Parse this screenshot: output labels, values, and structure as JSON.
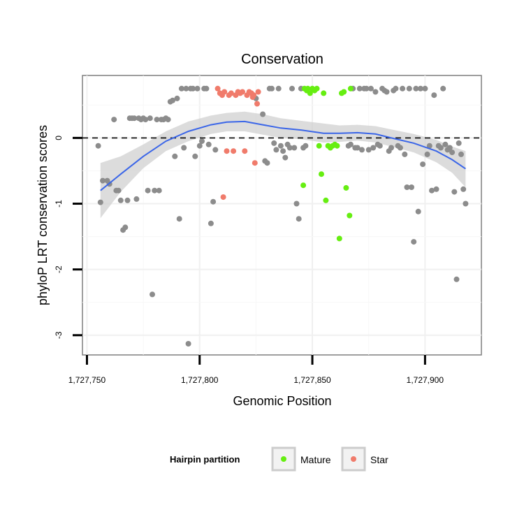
{
  "chart_data": {
    "type": "scatter",
    "title": "Conservation",
    "xlabel": "Genomic Position",
    "ylabel": "phyloP LRT conservation scores",
    "xlim": [
      1727748,
      1727925
    ],
    "ylim": [
      -3.3,
      0.95
    ],
    "x_ticks": [
      1727750,
      1727800,
      1727850,
      1727900
    ],
    "x_tick_labels": [
      "1,727,750",
      "1,727,800",
      "1,727,850",
      "1,727,900"
    ],
    "y_ticks": [
      0,
      -1,
      -2,
      -3
    ],
    "y_tick_labels": [
      "0",
      "-1",
      "-2",
      "-3"
    ],
    "reference_line": {
      "y": 0,
      "style": "dashed"
    },
    "grid": true,
    "legend": {
      "title": "Hairpin partition",
      "placement": "bottom",
      "entries": [
        {
          "label": "Mature",
          "color": "#66ee11"
        },
        {
          "label": "Star",
          "color": "#f07b6b"
        }
      ]
    },
    "colors": {
      "other": "#8c8c8c",
      "Mature": "#66ee11",
      "Star": "#f07b6b",
      "smooth": "#3b66e8",
      "band": "#d0d0d0"
    },
    "series": [
      {
        "group": "other",
        "points": [
          [
            1727755,
            -0.12
          ],
          [
            1727756,
            -0.98
          ],
          [
            1727757,
            -0.65
          ],
          [
            1727759,
            -0.65
          ],
          [
            1727760,
            -0.7
          ],
          [
            1727762,
            0.28
          ],
          [
            1727763,
            -0.8
          ],
          [
            1727764,
            -0.8
          ],
          [
            1727765,
            -0.95
          ],
          [
            1727766,
            -1.4
          ],
          [
            1727767,
            -1.36
          ],
          [
            1727768,
            -0.95
          ],
          [
            1727769,
            0.3
          ],
          [
            1727770,
            0.3
          ],
          [
            1727771,
            0.3
          ],
          [
            1727772,
            -0.93
          ],
          [
            1727773,
            0.3
          ],
          [
            1727774,
            0.28
          ],
          [
            1727775,
            0.3
          ],
          [
            1727776,
            0.28
          ],
          [
            1727777,
            -0.8
          ],
          [
            1727778,
            0.3
          ],
          [
            1727779,
            -2.38
          ],
          [
            1727780,
            -0.8
          ],
          [
            1727781,
            0.28
          ],
          [
            1727782,
            -0.8
          ],
          [
            1727783,
            0.28
          ],
          [
            1727784,
            0.28
          ],
          [
            1727785,
            0.3
          ],
          [
            1727786,
            0.28
          ],
          [
            1727787,
            0.55
          ],
          [
            1727788,
            0.57
          ],
          [
            1727789,
            -0.28
          ],
          [
            1727790,
            0.6
          ],
          [
            1727791,
            -1.23
          ],
          [
            1727792,
            0.75
          ],
          [
            1727793,
            -0.15
          ],
          [
            1727794,
            0.75
          ],
          [
            1727795,
            -3.13
          ],
          [
            1727796,
            0.75
          ],
          [
            1727797,
            0.75
          ],
          [
            1727798,
            -0.28
          ],
          [
            1727799,
            0.75
          ],
          [
            1727800,
            -0.12
          ],
          [
            1727801,
            -0.05
          ],
          [
            1727802,
            0.75
          ],
          [
            1727803,
            0.75
          ],
          [
            1727804,
            -0.1
          ],
          [
            1727805,
            -1.3
          ],
          [
            1727806,
            -0.97
          ],
          [
            1727807,
            -0.18
          ],
          [
            1727825,
            0.6
          ],
          [
            1727828,
            0.36
          ],
          [
            1727829,
            -0.35
          ],
          [
            1727830,
            -0.38
          ],
          [
            1727831,
            0.75
          ],
          [
            1727832,
            0.75
          ],
          [
            1727833,
            -0.08
          ],
          [
            1727834,
            -0.18
          ],
          [
            1727835,
            0.75
          ],
          [
            1727836,
            -0.12
          ],
          [
            1727837,
            -0.2
          ],
          [
            1727838,
            -0.3
          ],
          [
            1727839,
            -0.1
          ],
          [
            1727840,
            -0.15
          ],
          [
            1727841,
            0.75
          ],
          [
            1727842,
            -0.15
          ],
          [
            1727843,
            -1.0
          ],
          [
            1727844,
            -1.23
          ],
          [
            1727845,
            0.75
          ],
          [
            1727846,
            -0.15
          ],
          [
            1727847,
            -0.12
          ],
          [
            1727866,
            -0.12
          ],
          [
            1727867,
            -0.1
          ],
          [
            1727868,
            0.75
          ],
          [
            1727869,
            -0.15
          ],
          [
            1727870,
            -0.15
          ],
          [
            1727871,
            0.75
          ],
          [
            1727872,
            -0.18
          ],
          [
            1727873,
            0.75
          ],
          [
            1727874,
            0.75
          ],
          [
            1727875,
            -0.18
          ],
          [
            1727876,
            0.75
          ],
          [
            1727877,
            -0.15
          ],
          [
            1727878,
            0.7
          ],
          [
            1727879,
            -0.1
          ],
          [
            1727880,
            -0.12
          ],
          [
            1727881,
            0.75
          ],
          [
            1727882,
            0.72
          ],
          [
            1727883,
            0.7
          ],
          [
            1727884,
            -0.2
          ],
          [
            1727885,
            -0.15
          ],
          [
            1727886,
            0.72
          ],
          [
            1727887,
            0.75
          ],
          [
            1727888,
            -0.12
          ],
          [
            1727889,
            -0.15
          ],
          [
            1727890,
            0.75
          ],
          [
            1727891,
            -0.25
          ],
          [
            1727892,
            -0.75
          ],
          [
            1727893,
            0.75
          ],
          [
            1727894,
            -0.75
          ],
          [
            1727895,
            -1.58
          ],
          [
            1727896,
            0.75
          ],
          [
            1727897,
            -1.12
          ],
          [
            1727898,
            0.75
          ],
          [
            1727899,
            -0.4
          ],
          [
            1727900,
            0.75
          ],
          [
            1727901,
            -0.25
          ],
          [
            1727902,
            -0.12
          ],
          [
            1727903,
            -0.8
          ],
          [
            1727904,
            0.65
          ],
          [
            1727905,
            -0.78
          ],
          [
            1727906,
            -0.12
          ],
          [
            1727907,
            -0.15
          ],
          [
            1727908,
            0.75
          ],
          [
            1727909,
            -0.1
          ],
          [
            1727910,
            -0.18
          ],
          [
            1727911,
            -0.15
          ],
          [
            1727912,
            -0.22
          ],
          [
            1727913,
            -0.82
          ],
          [
            1727914,
            -2.15
          ],
          [
            1727915,
            -0.08
          ],
          [
            1727916,
            -0.25
          ],
          [
            1727917,
            -0.78
          ],
          [
            1727918,
            -1.0
          ]
        ]
      },
      {
        "group": "Star",
        "points": [
          [
            1727808,
            0.75
          ],
          [
            1727809,
            0.68
          ],
          [
            1727810,
            0.65
          ],
          [
            1727810.5,
            -0.9
          ],
          [
            1727811,
            0.7
          ],
          [
            1727812,
            -0.2
          ],
          [
            1727813,
            0.65
          ],
          [
            1727814,
            0.68
          ],
          [
            1727815,
            -0.2
          ],
          [
            1727816,
            0.65
          ],
          [
            1727817,
            0.7
          ],
          [
            1727818,
            0.68
          ],
          [
            1727819,
            0.7
          ],
          [
            1727820,
            -0.2
          ],
          [
            1727821,
            0.65
          ],
          [
            1727822,
            0.7
          ],
          [
            1727823,
            0.68
          ],
          [
            1727823.5,
            0.62
          ],
          [
            1727824,
            0.65
          ],
          [
            1727824.5,
            -0.38
          ],
          [
            1727825.5,
            0.52
          ],
          [
            1727826,
            0.7
          ]
        ]
      },
      {
        "group": "Mature",
        "points": [
          [
            1727846.5,
            0.75
          ],
          [
            1727847.5,
            0.72
          ],
          [
            1727848,
            0.75
          ],
          [
            1727849,
            0.68
          ],
          [
            1727850,
            0.75
          ],
          [
            1727851,
            0.72
          ],
          [
            1727852,
            0.75
          ],
          [
            1727853,
            -0.12
          ],
          [
            1727854,
            -0.55
          ],
          [
            1727855,
            0.68
          ],
          [
            1727856,
            -0.95
          ],
          [
            1727857,
            -0.12
          ],
          [
            1727858,
            -0.15
          ],
          [
            1727859,
            -0.12
          ],
          [
            1727860,
            -0.1
          ],
          [
            1727861,
            -0.12
          ],
          [
            1727862,
            -1.53
          ],
          [
            1727863,
            0.68
          ],
          [
            1727864,
            0.7
          ],
          [
            1727865,
            -0.76
          ],
          [
            1727866.5,
            -1.18
          ],
          [
            1727867,
            0.75
          ],
          [
            1727846,
            -0.72
          ]
        ]
      }
    ],
    "smooth_line": {
      "x": [
        1727756,
        1727765,
        1727775,
        1727785,
        1727795,
        1727805,
        1727812,
        1727820,
        1727828,
        1727836,
        1727845,
        1727855,
        1727862,
        1727870,
        1727878,
        1727885,
        1727895,
        1727905,
        1727912,
        1727918
      ],
      "y": [
        -0.8,
        -0.55,
        -0.28,
        -0.05,
        0.1,
        0.2,
        0.24,
        0.25,
        0.2,
        0.15,
        0.12,
        0.07,
        0.07,
        0.08,
        0.06,
        0.0,
        -0.08,
        -0.2,
        -0.33,
        -0.47
      ]
    },
    "confidence_band": {
      "upper": [
        -0.38,
        -0.28,
        -0.1,
        0.1,
        0.25,
        0.34,
        0.38,
        0.4,
        0.36,
        0.3,
        0.26,
        0.22,
        0.19,
        0.2,
        0.18,
        0.13,
        0.06,
        -0.03,
        -0.13,
        -0.2
      ],
      "lower": [
        -1.22,
        -0.82,
        -0.46,
        -0.2,
        -0.05,
        0.06,
        0.1,
        0.1,
        0.05,
        0.0,
        -0.02,
        -0.07,
        -0.06,
        -0.04,
        -0.07,
        -0.13,
        -0.22,
        -0.37,
        -0.53,
        -0.75
      ]
    }
  }
}
